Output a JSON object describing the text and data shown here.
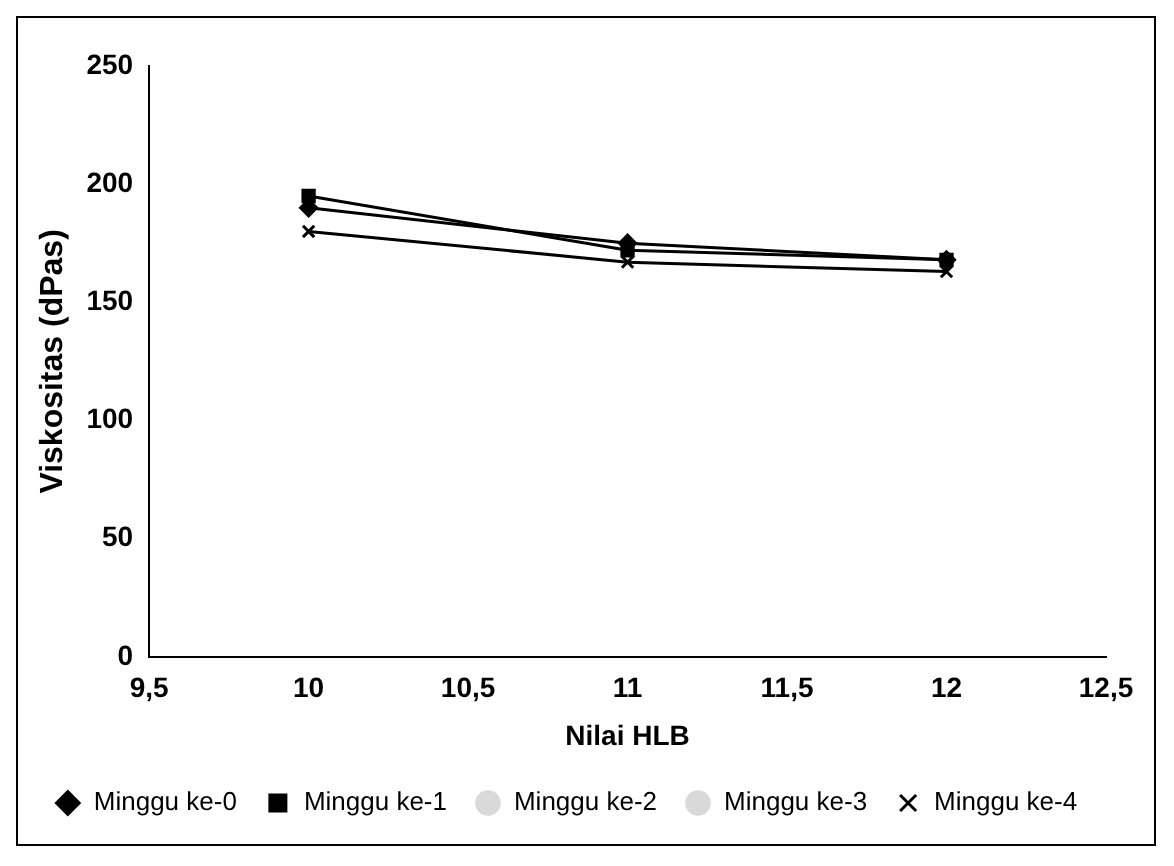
{
  "chart_data": {
    "type": "line",
    "xlabel": "Nilai HLB",
    "ylabel": "Viskositas (dPas)",
    "x": [
      10,
      11,
      12
    ],
    "series": [
      {
        "name": "Minggu ke-0",
        "color": "#000000",
        "marker": "diamond",
        "values": [
          190,
          175,
          168
        ]
      },
      {
        "name": "Minggu ke-1",
        "color": "#000000",
        "marker": "square",
        "values": [
          195,
          172,
          168
        ]
      },
      {
        "name": "Minggu ke-2",
        "color": "#d9d9d9",
        "marker": "none",
        "values": [
          null,
          null,
          null
        ]
      },
      {
        "name": "Minggu ke-3",
        "color": "#d9d9d9",
        "marker": "none",
        "values": [
          null,
          null,
          null
        ]
      },
      {
        "name": "Minggu ke-4",
        "color": "#000000",
        "marker": "cross",
        "values": [
          180,
          167,
          163
        ]
      }
    ],
    "xlim": [
      9.5,
      12.5
    ],
    "xticks": [
      {
        "value": 9.5,
        "label": "9,5"
      },
      10,
      {
        "value": 10.5,
        "label": "10,5"
      },
      11,
      {
        "value": 11.5,
        "label": "11,5"
      },
      12,
      {
        "value": 12.5,
        "label": "12,5"
      }
    ],
    "ylim": [
      0,
      250
    ],
    "yticks": [
      0,
      50,
      100,
      150,
      200,
      250
    ],
    "grid": false,
    "legend": "bottom",
    "line_style": "solid"
  }
}
